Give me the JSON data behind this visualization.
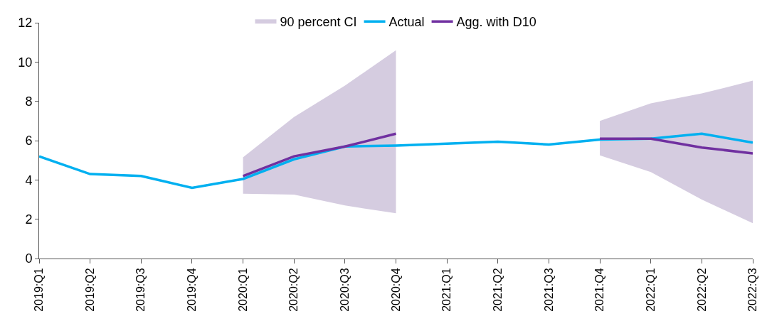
{
  "chart_data": {
    "type": "line",
    "categories": [
      "2019:Q1",
      "2019:Q2",
      "2019:Q3",
      "2019:Q4",
      "2020:Q1",
      "2020:Q2",
      "2020:Q3",
      "2020:Q4",
      "2021:Q1",
      "2021:Q2",
      "2021:Q3",
      "2021:Q4",
      "2022:Q1",
      "2022:Q2",
      "2022:Q3"
    ],
    "series": [
      {
        "name": "90 percent CI",
        "type": "area",
        "color": "#d5cce0",
        "values": [
          null,
          null,
          null,
          null,
          null,
          null,
          null,
          null,
          null,
          null,
          null,
          null,
          null,
          null,
          null
        ],
        "lower": [
          null,
          null,
          null,
          null,
          3.3,
          3.25,
          2.7,
          2.3,
          null,
          null,
          null,
          5.25,
          4.4,
          3.0,
          1.8
        ],
        "upper": [
          null,
          null,
          null,
          null,
          5.15,
          7.2,
          8.8,
          10.6,
          null,
          null,
          null,
          7.0,
          7.9,
          8.4,
          9.05
        ]
      },
      {
        "name": "Actual",
        "color": "#00b0f0",
        "values": [
          5.2,
          4.3,
          4.2,
          3.6,
          4.05,
          5.05,
          5.7,
          5.75,
          5.85,
          5.95,
          5.8,
          6.05,
          6.1,
          6.35,
          5.9
        ]
      },
      {
        "name": "Agg. with D10",
        "color": "#7030a0",
        "values": [
          null,
          null,
          null,
          null,
          4.2,
          5.2,
          5.7,
          6.35,
          null,
          null,
          null,
          6.1,
          6.1,
          5.65,
          5.35
        ]
      }
    ],
    "ylim": [
      0,
      12
    ],
    "yticks": [
      0,
      2,
      4,
      6,
      8,
      10,
      12
    ],
    "legend": "top",
    "marker": "none",
    "line_style": "solid"
  }
}
